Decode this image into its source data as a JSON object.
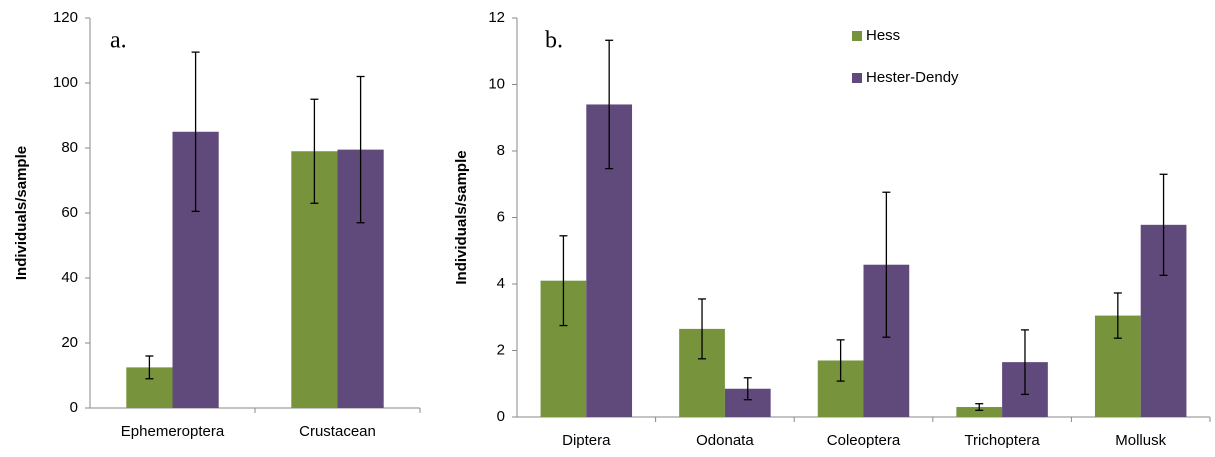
{
  "chart_data": [
    {
      "type": "bar",
      "annotation": "a.",
      "y_label": "Individuals/sample",
      "categories": [
        "Ephemeroptera",
        "Crustacean"
      ],
      "series": [
        {
          "color": "#77933c",
          "values": [
            12.5,
            79
          ],
          "errors": [
            3.5,
            16
          ]
        },
        {
          "color": "#604a7b",
          "values": [
            85,
            79.5
          ],
          "errors": [
            24.5,
            22.5
          ]
        }
      ],
      "ylim": [
        0,
        120
      ],
      "yticks": [
        0,
        20,
        40,
        60,
        80,
        100,
        120
      ]
    },
    {
      "type": "bar",
      "annotation": "b.",
      "y_label": "Individuals/sample",
      "categories": [
        "Diptera",
        "Odonata",
        "Coleoptera",
        "Trichoptera",
        "Mollusk"
      ],
      "series": [
        {
          "name": "Hess",
          "color": "#77933c",
          "values": [
            4.1,
            2.65,
            1.7,
            0.3,
            3.05
          ],
          "errors": [
            1.35,
            0.9,
            0.62,
            0.1,
            0.68
          ]
        },
        {
          "name": "Hester-Dendy",
          "color": "#604a7b",
          "values": [
            9.4,
            0.85,
            4.58,
            1.65,
            5.78
          ],
          "errors": [
            1.93,
            0.33,
            2.18,
            0.97,
            1.52
          ]
        }
      ],
      "ylim": [
        0,
        12
      ],
      "yticks": [
        0,
        2,
        4,
        6,
        8,
        10,
        12
      ],
      "legend": "top"
    }
  ]
}
